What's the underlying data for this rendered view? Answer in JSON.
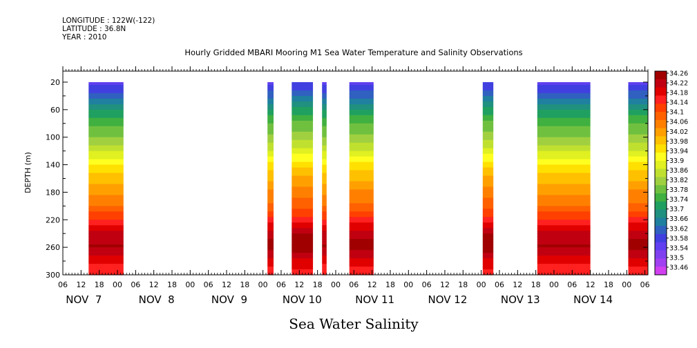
{
  "header": {
    "longitude": "LONGITUDE : 122W(-122)",
    "latitude": "LATITUDE : 36.8N",
    "year": "YEAR : 2010"
  },
  "chart_data": {
    "type": "heatmap",
    "title": "Hourly Gridded MBARI Mooring M1 Sea Water Temperature and Salinity Observations",
    "xlabel": "Sea Water Salinity",
    "ylabel": "DEPTH (m)",
    "x_hour_ticks": [
      "06",
      "12",
      "18",
      "00",
      "06",
      "12",
      "18",
      "00",
      "06",
      "12",
      "18",
      "00",
      "06",
      "12",
      "18",
      "00",
      "06",
      "12",
      "18",
      "00",
      "06",
      "12",
      "18",
      "00",
      "06",
      "12",
      "18",
      "00",
      "06",
      "12",
      "18",
      "00",
      "06"
    ],
    "x_day_labels": [
      "NOV  7",
      "NOV  8",
      "NOV  9",
      "NOV 10",
      "NOV 11",
      "NOV 12",
      "NOV 13",
      "NOV 14"
    ],
    "y_ticks": [
      20,
      60,
      100,
      140,
      180,
      220,
      260,
      300
    ],
    "ylim": [
      300,
      4
    ],
    "x_range_hours": [
      0,
      193
    ],
    "data_segments_hours": [
      [
        8.5,
        20
      ],
      [
        67.5,
        69.5
      ],
      [
        75.5,
        82.5
      ],
      [
        85.5,
        87
      ],
      [
        94.5,
        102.5
      ],
      [
        138.5,
        142
      ],
      [
        156.5,
        174
      ],
      [
        186.5,
        195
      ]
    ],
    "salinity_profile": {
      "depth": [
        20,
        40,
        60,
        80,
        100,
        120,
        140,
        160,
        180,
        200,
        220,
        240,
        260,
        280,
        300
      ],
      "salinity": [
        33.58,
        33.64,
        33.72,
        33.78,
        33.82,
        33.88,
        33.95,
        34.0,
        34.04,
        34.08,
        34.14,
        34.22,
        34.24,
        34.18,
        34.14
      ]
    },
    "colorbar": {
      "labels": [
        "34.26",
        "34.22",
        "34.18",
        "34.14",
        "34.1",
        "34.06",
        "34.02",
        "33.98",
        "33.94",
        "33.9",
        "33.86",
        "33.82",
        "33.78",
        "33.74",
        "33.7",
        "33.66",
        "33.62",
        "33.58",
        "33.54",
        "33.5",
        "33.46"
      ],
      "colors": [
        "#a00000",
        "#c00010",
        "#e00000",
        "#ff2020",
        "#ff4000",
        "#ff6000",
        "#ff8000",
        "#ffa000",
        "#ffc000",
        "#ffe000",
        "#ffff20",
        "#e0f020",
        "#c0e030",
        "#a0d040",
        "#70c040",
        "#40b040",
        "#20a060",
        "#209080",
        "#2080a0",
        "#3060c0",
        "#4040e0",
        "#6040f0",
        "#8040f0",
        "#a040f0",
        "#d040f0"
      ]
    }
  }
}
